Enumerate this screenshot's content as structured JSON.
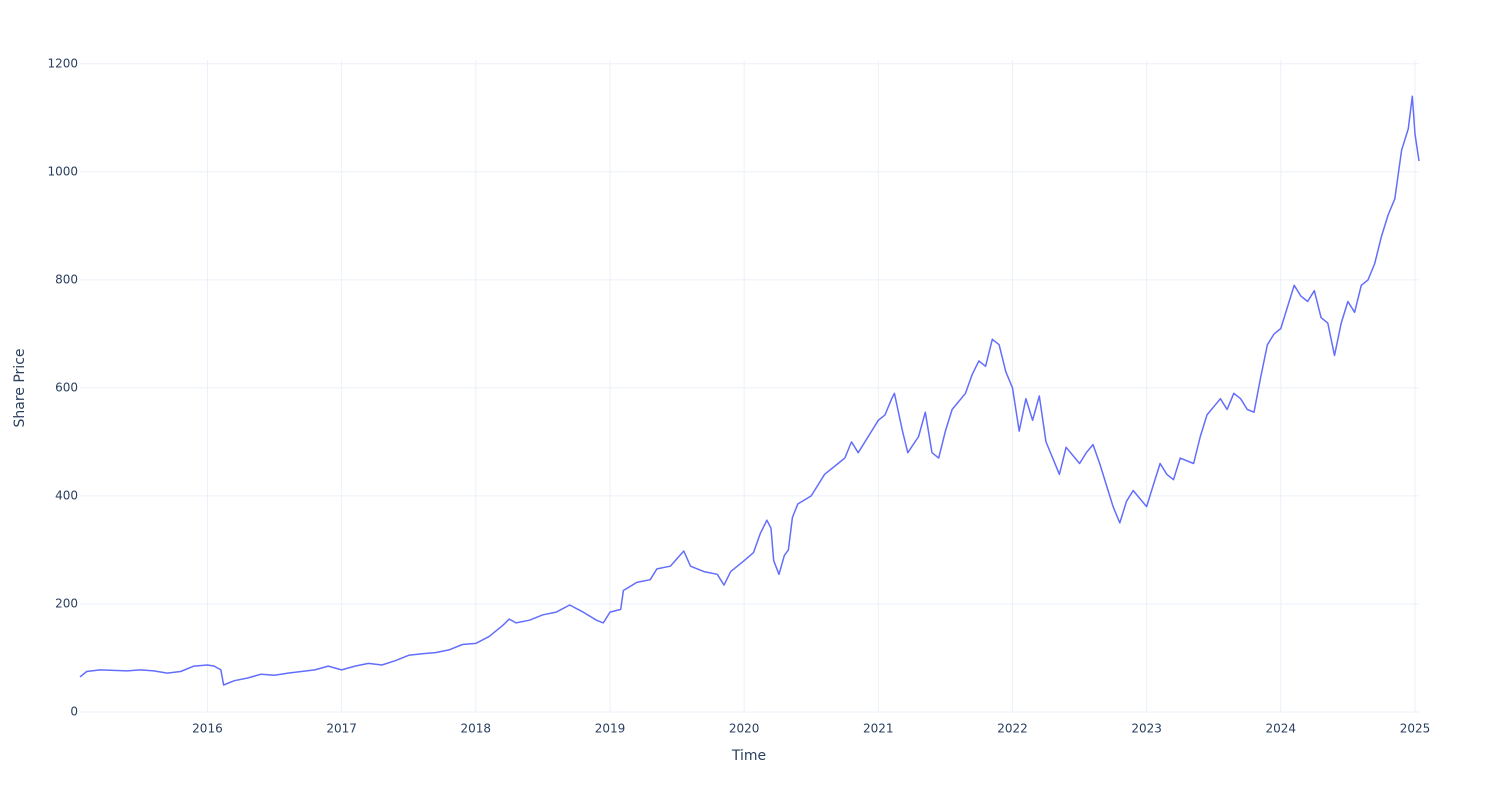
{
  "chart_data": {
    "type": "line",
    "x_label": "Time",
    "y_label": "Share Price",
    "color": "#636efa",
    "grid": true,
    "xlim": [
      2015.05,
      2025.03
    ],
    "ylim": [
      0,
      1207
    ],
    "xticks": [
      2016,
      2017,
      2018,
      2019,
      2020,
      2021,
      2022,
      2023,
      2024,
      2025
    ],
    "yticks": [
      0,
      200,
      400,
      600,
      800,
      1000,
      1200
    ],
    "x": [
      2015.05,
      2015.1,
      2015.2,
      2015.3,
      2015.4,
      2015.5,
      2015.6,
      2015.7,
      2015.8,
      2015.9,
      2016.0,
      2016.05,
      2016.1,
      2016.12,
      2016.2,
      2016.3,
      2016.4,
      2016.5,
      2016.6,
      2016.7,
      2016.8,
      2016.9,
      2017.0,
      2017.1,
      2017.2,
      2017.3,
      2017.4,
      2017.5,
      2017.6,
      2017.7,
      2017.8,
      2017.9,
      2018.0,
      2018.1,
      2018.2,
      2018.25,
      2018.3,
      2018.4,
      2018.5,
      2018.6,
      2018.7,
      2018.8,
      2018.9,
      2018.95,
      2019.0,
      2019.08,
      2019.1,
      2019.2,
      2019.3,
      2019.35,
      2019.45,
      2019.55,
      2019.6,
      2019.7,
      2019.8,
      2019.85,
      2019.9,
      2020.0,
      2020.07,
      2020.12,
      2020.17,
      2020.2,
      2020.22,
      2020.26,
      2020.3,
      2020.33,
      2020.36,
      2020.4,
      2020.5,
      2020.55,
      2020.6,
      2020.7,
      2020.75,
      2020.8,
      2020.85,
      2020.95,
      2021.0,
      2021.05,
      2021.1,
      2021.12,
      2021.18,
      2021.22,
      2021.3,
      2021.35,
      2021.4,
      2021.45,
      2021.5,
      2021.55,
      2021.65,
      2021.7,
      2021.75,
      2021.8,
      2021.85,
      2021.9,
      2021.95,
      2022.0,
      2022.05,
      2022.1,
      2022.15,
      2022.2,
      2022.25,
      2022.35,
      2022.4,
      2022.5,
      2022.55,
      2022.6,
      2022.65,
      2022.7,
      2022.75,
      2022.8,
      2022.85,
      2022.9,
      2022.95,
      2023.0,
      2023.05,
      2023.1,
      2023.15,
      2023.2,
      2023.25,
      2023.35,
      2023.4,
      2023.45,
      2023.5,
      2023.55,
      2023.6,
      2023.65,
      2023.7,
      2023.75,
      2023.8,
      2023.85,
      2023.9,
      2023.95,
      2024.0,
      2024.05,
      2024.1,
      2024.15,
      2024.2,
      2024.25,
      2024.3,
      2024.35,
      2024.4,
      2024.45,
      2024.5,
      2024.55,
      2024.6,
      2024.65,
      2024.7,
      2024.75,
      2024.8,
      2024.85,
      2024.9,
      2024.95,
      2024.98,
      2025.0,
      2025.03
    ],
    "values": [
      65,
      75,
      78,
      77,
      76,
      78,
      76,
      72,
      75,
      85,
      87,
      85,
      78,
      50,
      58,
      63,
      70,
      68,
      72,
      75,
      78,
      85,
      78,
      85,
      90,
      87,
      95,
      105,
      108,
      110,
      115,
      125,
      127,
      140,
      160,
      172,
      165,
      170,
      180,
      185,
      198,
      185,
      170,
      165,
      185,
      190,
      225,
      240,
      245,
      265,
      270,
      298,
      270,
      260,
      255,
      235,
      260,
      280,
      295,
      330,
      355,
      340,
      280,
      255,
      290,
      300,
      360,
      385,
      400,
      420,
      440,
      460,
      470,
      500,
      480,
      520,
      540,
      550,
      580,
      590,
      520,
      480,
      510,
      555,
      480,
      470,
      520,
      560,
      590,
      625,
      650,
      640,
      690,
      680,
      630,
      600,
      520,
      580,
      540,
      585,
      500,
      440,
      490,
      460,
      480,
      495,
      460,
      420,
      380,
      350,
      390,
      410,
      395,
      380,
      420,
      460,
      440,
      430,
      470,
      460,
      510,
      550,
      565,
      580,
      560,
      590,
      580,
      560,
      555,
      620,
      680,
      700,
      710,
      750,
      790,
      770,
      760,
      780,
      730,
      720,
      660,
      720,
      760,
      740,
      790,
      800,
      830,
      880,
      920,
      950,
      1040,
      1080,
      1140,
      1070,
      1020
    ]
  }
}
